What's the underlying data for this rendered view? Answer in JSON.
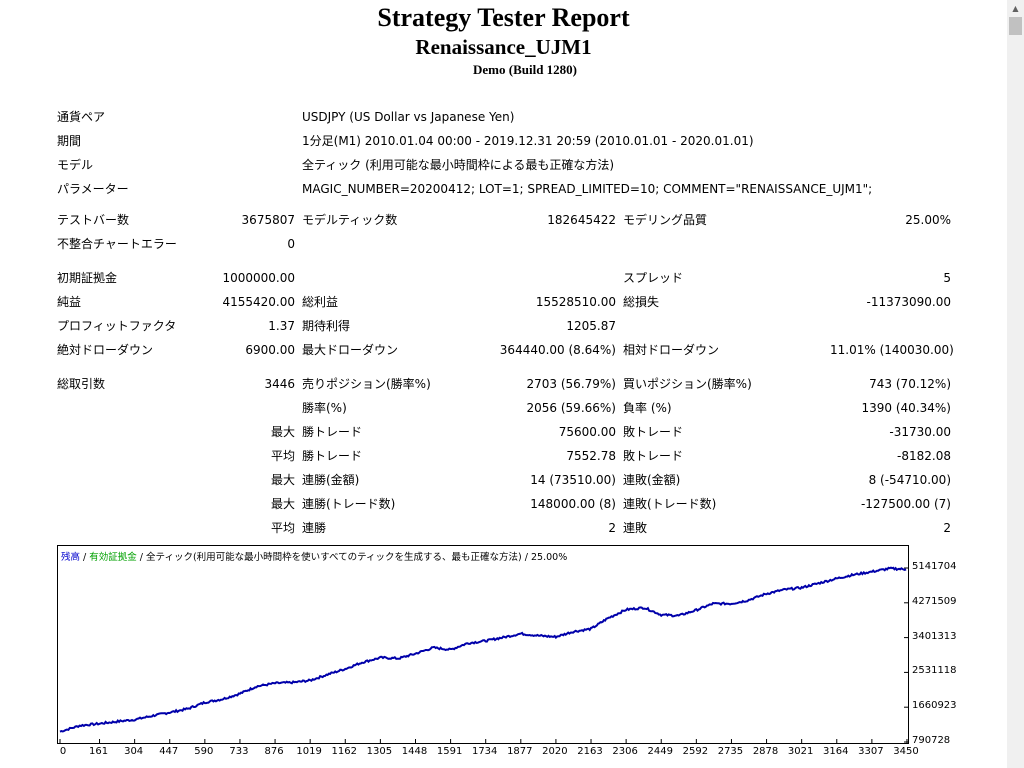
{
  "header": {
    "title": "Strategy Tester Report",
    "subtitle": "Renaissance_UJM1",
    "build": "Demo (Build 1280)"
  },
  "info": [
    {
      "label": "通貨ペア",
      "value": "USDJPY (US Dollar vs Japanese Yen)"
    },
    {
      "label": "期間",
      "value": "1分足(M1) 2010.01.04 00:00 - 2019.12.31 20:59 (2010.01.01 - 2020.01.01)"
    },
    {
      "label": "モデル",
      "value": "全ティック (利用可能な最小時間枠による最も正確な方法)"
    },
    {
      "label": "パラメーター",
      "value": "MAGIC_NUMBER=20200412; LOT=1; SPREAD_LIMITED=10; COMMENT=\"RENAISSANCE_UJM1\";"
    }
  ],
  "stats": {
    "test_bars_label": "テストバー数",
    "test_bars": "3675807",
    "model_ticks_label": "モデルティック数",
    "model_ticks": "182645422",
    "modeling_quality_label": "モデリング品質",
    "modeling_quality": "25.00%",
    "mismatch_label": "不整合チャートエラー",
    "mismatch": "0",
    "initial_deposit_label": "初期証拠金",
    "initial_deposit": "1000000.00",
    "spread_label": "スプレッド",
    "spread": "5",
    "net_profit_label": "純益",
    "net_profit": "4155420.00",
    "gross_profit_label": "総利益",
    "gross_profit": "15528510.00",
    "gross_loss_label": "総損失",
    "gross_loss": "-11373090.00",
    "profit_factor_label": "プロフィットファクタ",
    "profit_factor": "1.37",
    "expected_payoff_label": "期待利得",
    "expected_payoff": "1205.87",
    "abs_dd_label": "絶対ドローダウン",
    "abs_dd": "6900.00",
    "max_dd_label": "最大ドローダウン",
    "max_dd": "364440.00 (8.64%)",
    "rel_dd_label": "相対ドローダウン",
    "rel_dd": "11.01% (140030.00)",
    "total_trades_label": "総取引数",
    "total_trades": "3446",
    "short_label": "売りポジション(勝率%)",
    "short": "2703 (56.79%)",
    "long_label": "買いポジション(勝率%)",
    "long": "743 (70.12%)",
    "win_rate_label": "勝率(%)",
    "win_rate": "2056 (59.66%)",
    "loss_rate_label": "負率 (%)",
    "loss_rate": "1390 (40.34%)",
    "max_label": "最大",
    "avg_label": "平均",
    "win_trade_label": "勝トレード",
    "lose_trade_label": "敗トレード",
    "largest_win": "75600.00",
    "largest_loss": "-31730.00",
    "avg_win": "7552.78",
    "avg_loss": "-8182.08",
    "consec_wins_money_label": "連勝(金額)",
    "consec_wins_money": "14 (73510.00)",
    "consec_losses_money_label": "連敗(金額)",
    "consec_losses_money": "8 (-54710.00)",
    "consec_wins_count_label": "連勝(トレード数)",
    "consec_wins_count": "148000.00 (8)",
    "consec_losses_count_label": "連敗(トレード数)",
    "consec_losses_count": "-127500.00 (7)",
    "avg_consec_wins_label": "連勝",
    "avg_consec_wins": "2",
    "avg_consec_losses_label": "連敗",
    "avg_consec_losses": "2"
  },
  "chart_legend": {
    "balance": "残高",
    "sep1": " / ",
    "equity": "有効証拠金",
    "sep2": " / ",
    "rest": "全ティック(利用可能な最小時間枠を使いすべてのティックを生成する、最も正確な方法) / 25.00%"
  },
  "colors": {
    "balance_line": "#0000aa",
    "chart_border": "#000000",
    "legend_balance": "#0000cc",
    "legend_equity": "#00a000"
  },
  "chart_data": {
    "type": "line",
    "x_ticks": [
      "0",
      "161",
      "304",
      "447",
      "590",
      "733",
      "876",
      "1019",
      "1162",
      "1305",
      "1448",
      "1591",
      "1734",
      "1877",
      "2020",
      "2163",
      "2306",
      "2449",
      "2592",
      "2735",
      "2878",
      "3021",
      "3164",
      "3307",
      "3450"
    ],
    "y_ticks": [
      "5141704",
      "4271509",
      "3401313",
      "2531118",
      "1660923",
      "790728"
    ],
    "ylim": [
      790728,
      5141704
    ],
    "xlim": [
      0,
      3446
    ],
    "series": [
      {
        "name": "残高",
        "x": [
          0,
          80,
          161,
          230,
          304,
          380,
          447,
          520,
          590,
          660,
          733,
          800,
          876,
          950,
          1019,
          1090,
          1162,
          1230,
          1305,
          1380,
          1448,
          1520,
          1591,
          1660,
          1734,
          1800,
          1877,
          1950,
          2020,
          2090,
          2163,
          2230,
          2306,
          2380,
          2449,
          2520,
          2592,
          2660,
          2735,
          2800,
          2878,
          2950,
          3021,
          3090,
          3164,
          3230,
          3307,
          3380,
          3446
        ],
        "y": [
          1050000,
          1200000,
          1250000,
          1300000,
          1350000,
          1450000,
          1530000,
          1620000,
          1780000,
          1860000,
          2000000,
          2180000,
          2260000,
          2280000,
          2330000,
          2480000,
          2620000,
          2780000,
          2900000,
          2880000,
          3000000,
          3150000,
          3100000,
          3260000,
          3320000,
          3400000,
          3500000,
          3450000,
          3420000,
          3550000,
          3620000,
          3880000,
          4100000,
          4150000,
          3970000,
          3950000,
          4090000,
          4250000,
          4250000,
          4330000,
          4500000,
          4600000,
          4650000,
          4760000,
          4880000,
          4970000,
          5050000,
          5130000,
          5110000
        ]
      }
    ]
  }
}
